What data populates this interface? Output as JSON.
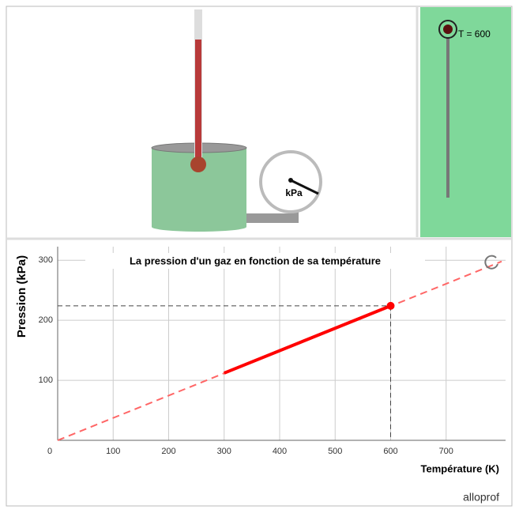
{
  "slider": {
    "label": "T = 600"
  },
  "gauge": {
    "unit": "kPa"
  },
  "brand": "alloprof",
  "chart_data": {
    "type": "line",
    "title": "La pression d'un gaz en fonction de sa température",
    "x_label": "Température (K)",
    "y_label": "Pression (kPa)",
    "xlim": [
      0,
      800
    ],
    "ylim": [
      0,
      320
    ],
    "xticks": [
      0,
      100,
      200,
      300,
      400,
      500,
      600,
      700
    ],
    "yticks": [
      100,
      200,
      300
    ],
    "grid": true,
    "series": [
      {
        "color": "#ff6666",
        "style": "dashed",
        "x": [
          0,
          800
        ],
        "values": [
          0,
          298
        ]
      },
      {
        "color": "#ff0000",
        "style": "solid",
        "x": [
          300,
          600
        ],
        "values": [
          112,
          224
        ]
      },
      {
        "color": "#ff0000",
        "style": "marker",
        "x": [
          600
        ],
        "values": [
          224
        ]
      }
    ]
  }
}
